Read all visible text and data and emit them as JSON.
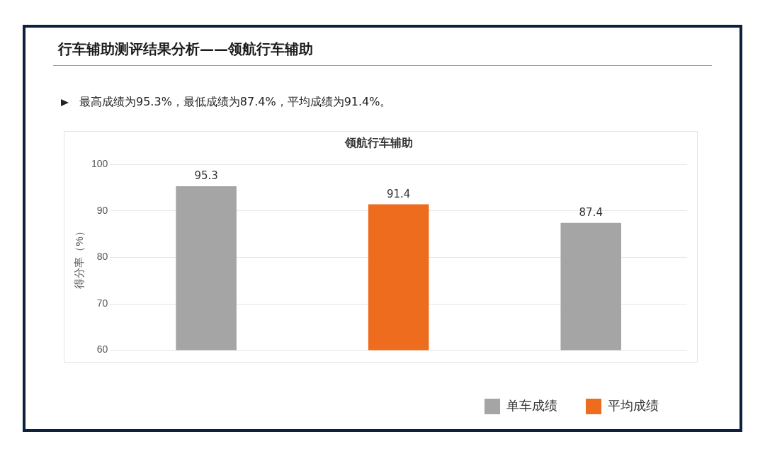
{
  "chart_data": {
    "type": "bar",
    "title": "行车辅助测评结果分析——领航行车辅助",
    "subtitle": "最高成绩为95.3%，最低成绩为87.4%，平均成绩为91.4%。",
    "annotations": [
      "领航行车辅助"
    ],
    "ylabel": "得分率（%）",
    "categories": [
      null,
      null,
      null
    ],
    "series": [
      {
        "name": "单车成绩",
        "color": "#a5a5a5",
        "values": [
          95.3,
          null,
          87.4
        ]
      },
      {
        "name": "平均成绩",
        "color": "#ed6c1e",
        "values": [
          null,
          91.4,
          null
        ]
      }
    ],
    "ylim": [
      60,
      100
    ],
    "yticks": [
      60,
      70,
      80,
      90,
      100
    ],
    "grid": "y",
    "legend": "bottom right",
    "data_labels": true
  }
}
